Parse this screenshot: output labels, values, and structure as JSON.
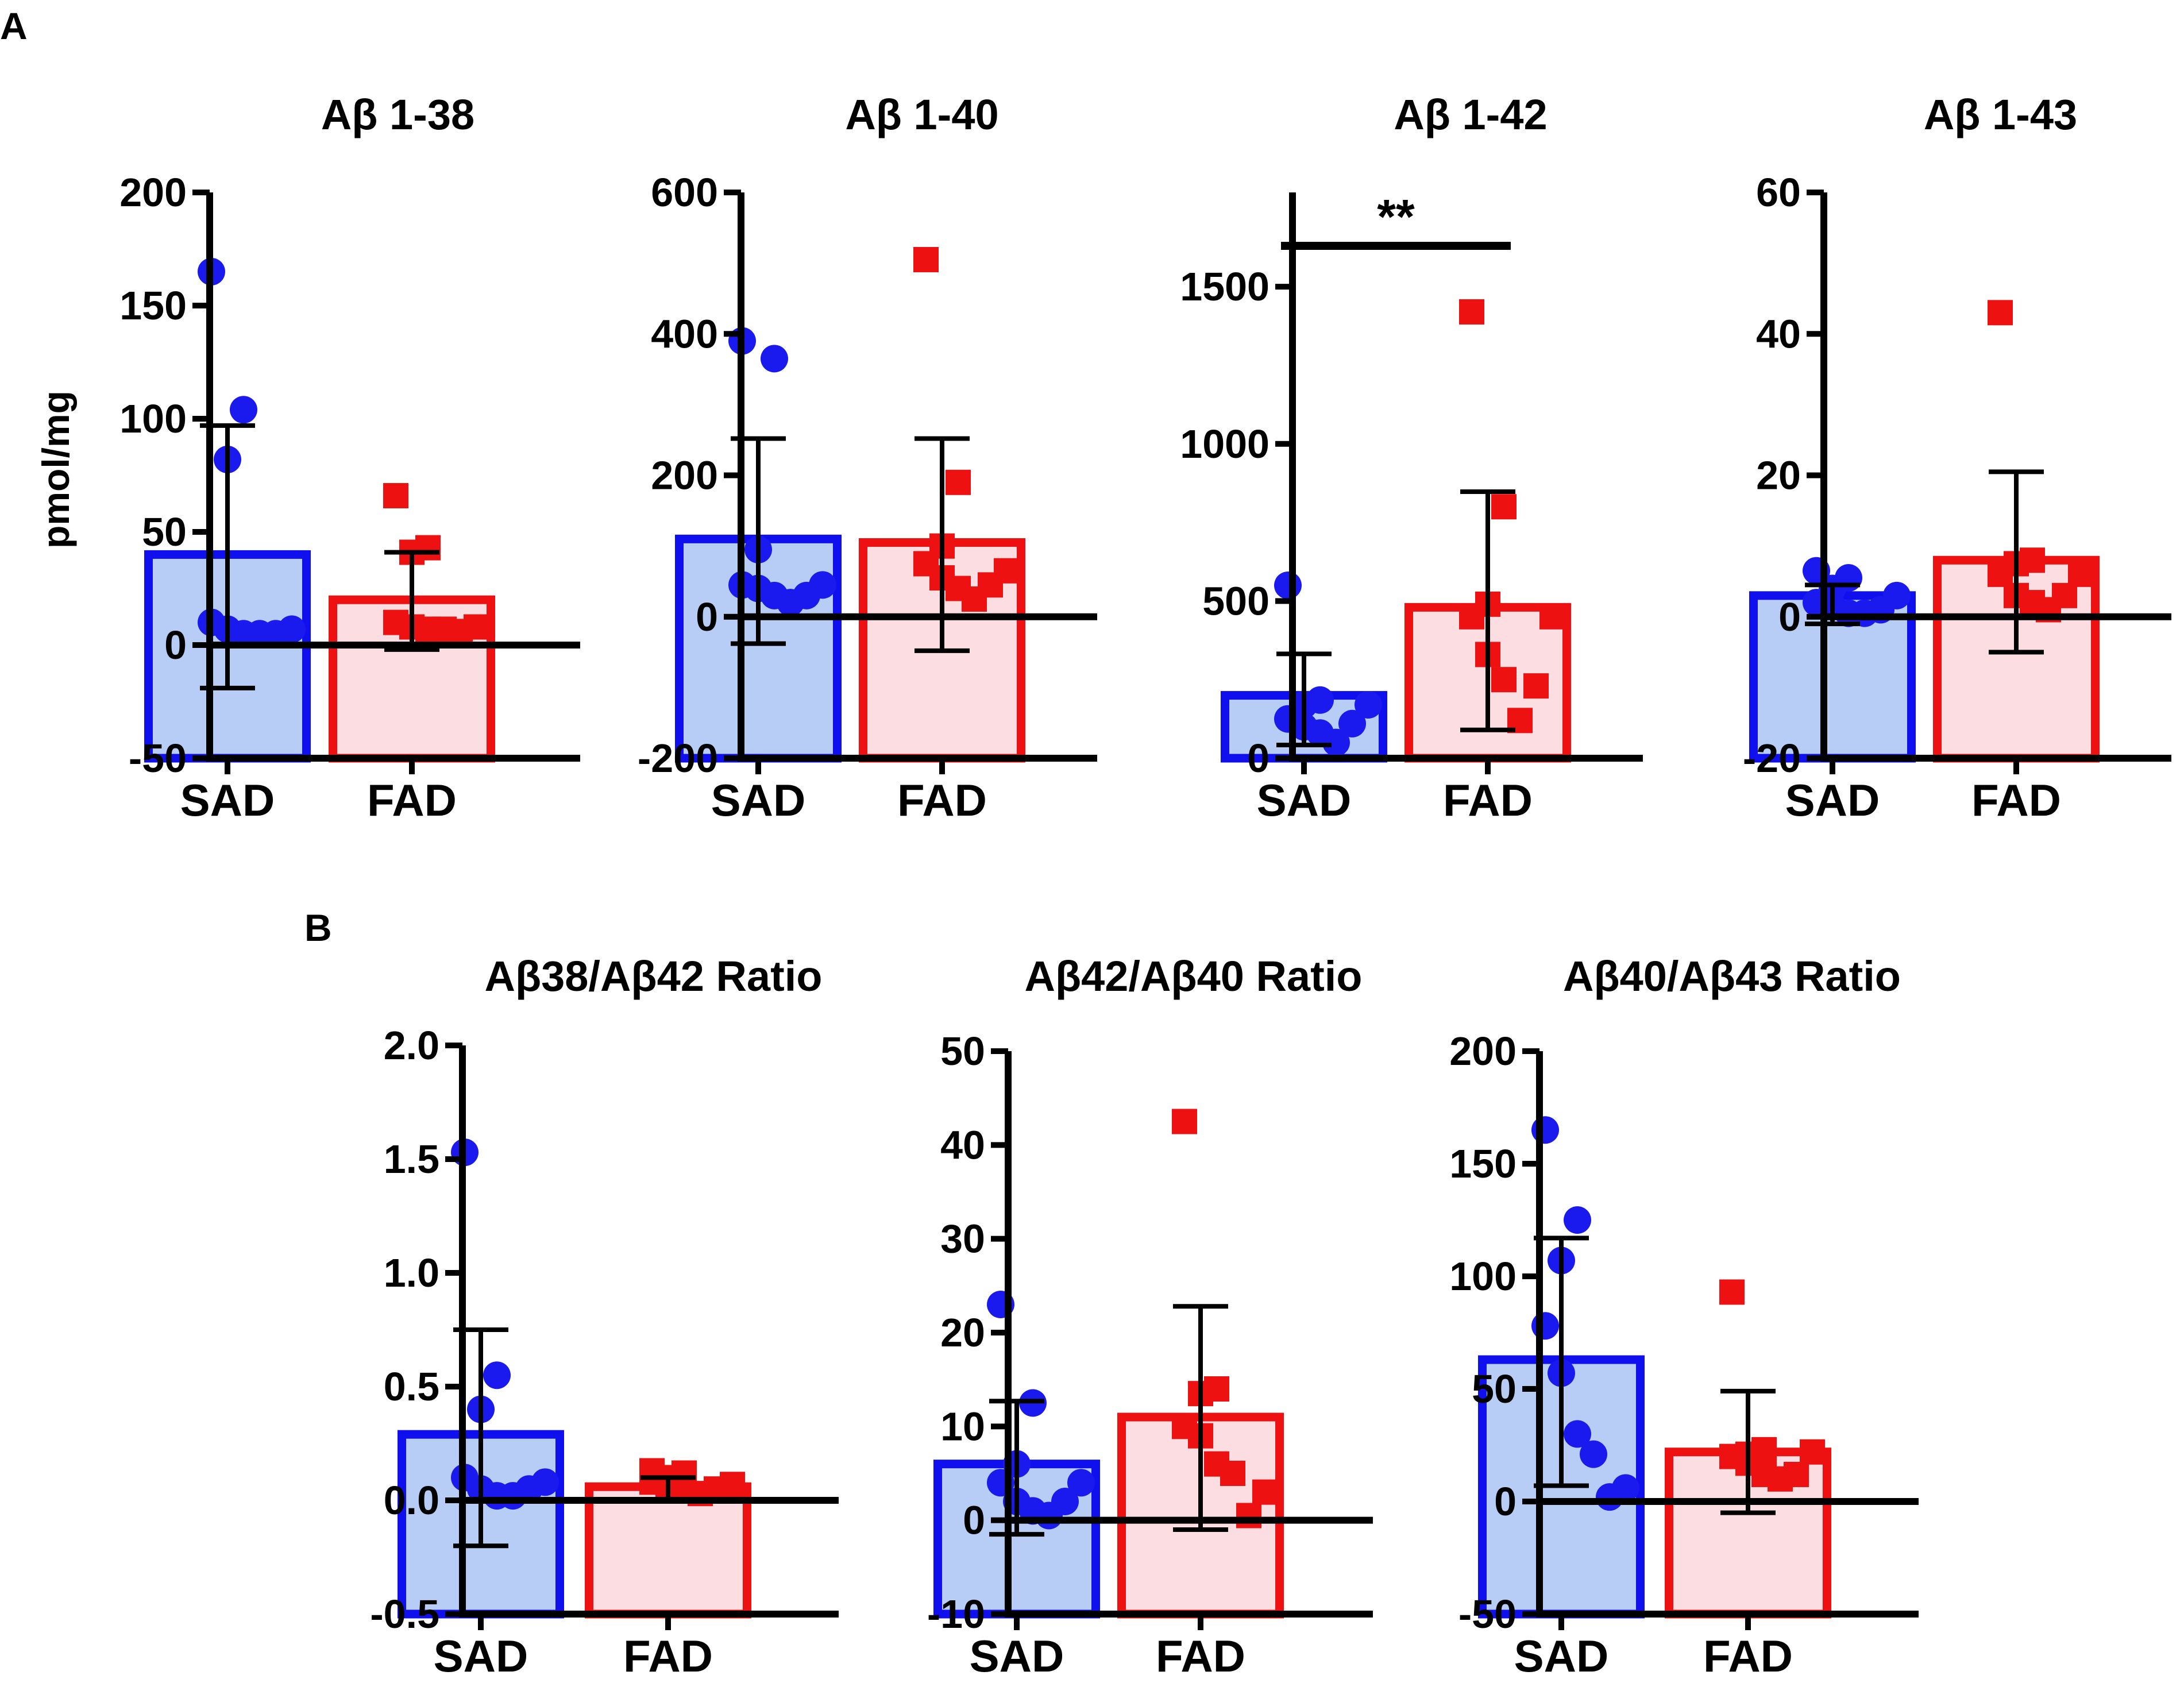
{
  "panel_labels": {
    "A": "A",
    "B": "B"
  },
  "colors": {
    "sad_stroke": "#1010ee",
    "sad_fill": "#b8cdf5",
    "sad_point": "#1a1aee",
    "fad_stroke": "#ee1111",
    "fad_fill": "#fbdde2",
    "fad_point": "#ee1111",
    "axis": "#000000"
  },
  "chart_data": [
    {
      "type": "bar",
      "panel": "A",
      "title": "Aβ 1-38",
      "ylabel": "pmol/mg",
      "xlabel": "",
      "categories": [
        "SAD",
        "FAD"
      ],
      "ylim": [
        -50,
        200
      ],
      "yticks": [
        -50,
        0,
        50,
        100,
        150,
        200
      ],
      "ytick_labels": [
        "-50",
        "0",
        "50",
        "100",
        "150",
        "200"
      ],
      "grid": false,
      "series": [
        {
          "name": "SAD",
          "mean": 40,
          "err_low": -19,
          "err_high": 97,
          "points": [
            165,
            104,
            82,
            10,
            7,
            5,
            5,
            5,
            7
          ]
        },
        {
          "name": "FAD",
          "mean": 20,
          "err_low": -2,
          "err_high": 41,
          "points": [
            66,
            43,
            41,
            10,
            8,
            7,
            7,
            6,
            8
          ]
        }
      ],
      "significance": null
    },
    {
      "type": "bar",
      "panel": "A",
      "title": "Aβ 1-40",
      "ylabel": "",
      "xlabel": "",
      "categories": [
        "SAD",
        "FAD"
      ],
      "ylim": [
        -200,
        600
      ],
      "yticks": [
        -200,
        0,
        200,
        400,
        600
      ],
      "ytick_labels": [
        "-200",
        "0",
        "200",
        "400",
        "600"
      ],
      "grid": false,
      "series": [
        {
          "name": "SAD",
          "mean": 110,
          "err_low": -38,
          "err_high": 252,
          "points": [
            390,
            365,
            95,
            45,
            40,
            30,
            20,
            30,
            45
          ]
        },
        {
          "name": "FAD",
          "mean": 105,
          "err_low": -48,
          "err_high": 252,
          "points": [
            505,
            190,
            100,
            75,
            55,
            40,
            25,
            45,
            65
          ]
        }
      ],
      "significance": null
    },
    {
      "type": "bar",
      "panel": "A",
      "title": "Aβ 1-42",
      "ylabel": "",
      "xlabel": "",
      "categories": [
        "SAD",
        "FAD"
      ],
      "ylim": [
        0,
        1800
      ],
      "yticks": [
        0,
        500,
        1000,
        1500
      ],
      "ytick_labels": [
        "0",
        "500",
        "1000",
        "1500"
      ],
      "grid": false,
      "series": [
        {
          "name": "SAD",
          "mean": 200,
          "err_low": 42,
          "err_high": 332,
          "points": [
            550,
            185,
            170,
            125,
            100,
            80,
            50,
            110,
            170
          ]
        },
        {
          "name": "FAD",
          "mean": 480,
          "err_low": 90,
          "err_high": 848,
          "points": [
            1420,
            800,
            490,
            450,
            330,
            250,
            120,
            230,
            450
          ]
        }
      ],
      "significance": {
        "label": "**",
        "y": 1630
      }
    },
    {
      "type": "bar",
      "panel": "A",
      "title": "Aβ 1-43",
      "ylabel": "",
      "xlabel": "",
      "categories": [
        "SAD",
        "FAD"
      ],
      "ylim": [
        -20,
        60
      ],
      "yticks": [
        -20,
        0,
        20,
        40,
        60
      ],
      "ytick_labels": [
        "-20",
        "0",
        "20",
        "40",
        "60"
      ],
      "grid": false,
      "series": [
        {
          "name": "SAD",
          "mean": 3,
          "err_low": -1,
          "err_high": 4.5,
          "points": [
            6.5,
            5.5,
            4,
            2,
            1.5,
            0.5,
            0.5,
            1,
            3
          ]
        },
        {
          "name": "FAD",
          "mean": 8,
          "err_low": -5,
          "err_high": 20.5,
          "points": [
            43,
            8,
            7.5,
            6,
            3,
            2,
            1,
            3,
            6
          ]
        }
      ],
      "significance": null
    },
    {
      "type": "bar",
      "panel": "B",
      "title": "Aβ38/Aβ42 Ratio",
      "ylabel": "",
      "xlabel": "",
      "categories": [
        "SAD",
        "FAD"
      ],
      "ylim": [
        -0.5,
        2.0
      ],
      "yticks": [
        -0.5,
        0.0,
        0.5,
        1.0,
        1.5,
        2.0
      ],
      "ytick_labels": [
        "-0.5",
        "0.0",
        "0.5",
        "1.0",
        "1.5",
        "2.0"
      ],
      "grid": false,
      "series": [
        {
          "name": "SAD",
          "mean": 0.29,
          "err_low": -0.2,
          "err_high": 0.75,
          "points": [
            1.53,
            0.55,
            0.4,
            0.1,
            0.05,
            0.02,
            0.02,
            0.05,
            0.08
          ]
        },
        {
          "name": "FAD",
          "mean": 0.06,
          "err_low": 0.0,
          "err_high": 0.1,
          "points": [
            0.13,
            0.12,
            0.1,
            0.08,
            0.07,
            0.05,
            0.03,
            0.05,
            0.07
          ]
        }
      ],
      "significance": null
    },
    {
      "type": "bar",
      "panel": "B",
      "title": "Aβ42/Aβ40 Ratio",
      "ylabel": "",
      "xlabel": "",
      "categories": [
        "SAD",
        "FAD"
      ],
      "ylim": [
        -10,
        50
      ],
      "yticks": [
        -10,
        0,
        10,
        20,
        30,
        40,
        50
      ],
      "ytick_labels": [
        "-10",
        "0",
        "10",
        "20",
        "30",
        "40",
        "50"
      ],
      "grid": false,
      "series": [
        {
          "name": "SAD",
          "mean": 6,
          "err_low": -1.5,
          "err_high": 12.7,
          "points": [
            23,
            12.5,
            6,
            4,
            2,
            1,
            0.5,
            2,
            4
          ]
        },
        {
          "name": "FAD",
          "mean": 11,
          "err_low": -1,
          "err_high": 22.8,
          "points": [
            42.5,
            14,
            13.5,
            10,
            9,
            6,
            5,
            0.5,
            3
          ]
        }
      ],
      "significance": null
    },
    {
      "type": "bar",
      "panel": "B",
      "title": "Aβ40/Aβ43 Ratio",
      "ylabel": "",
      "xlabel": "",
      "categories": [
        "SAD",
        "FAD"
      ],
      "ylim": [
        -50,
        200
      ],
      "yticks": [
        -50,
        0,
        50,
        100,
        150,
        200
      ],
      "ytick_labels": [
        "-50",
        "0",
        "50",
        "100",
        "150",
        "200"
      ],
      "grid": false,
      "series": [
        {
          "name": "SAD",
          "mean": 63,
          "err_low": 7,
          "err_high": 117,
          "points": [
            165,
            125,
            107,
            78,
            57,
            30,
            21,
            2,
            6
          ]
        },
        {
          "name": "FAD",
          "mean": 22,
          "err_low": -5,
          "err_high": 49,
          "points": [
            93,
            23,
            21,
            20,
            17,
            12,
            10,
            12,
            22
          ]
        }
      ],
      "significance": null
    }
  ]
}
